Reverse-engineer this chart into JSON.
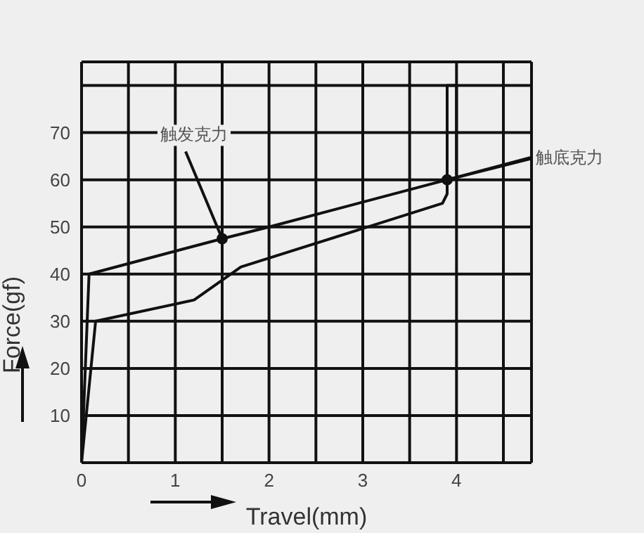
{
  "chart_data": {
    "type": "line",
    "xlabel": "Travel(mm)",
    "ylabel": "Force(gf)",
    "xlim": [
      0,
      4.8
    ],
    "ylim": [
      0,
      85
    ],
    "xticks": [
      0,
      {
        "value": 0.5,
        "label": null
      },
      1,
      {
        "value": 1.5,
        "label": null
      },
      2,
      {
        "value": 2.5,
        "label": null
      },
      3,
      {
        "value": 3.5,
        "label": null
      },
      4,
      {
        "value": 4.5,
        "label": null
      }
    ],
    "yticks": [
      {
        "value": 0,
        "label": null
      },
      10,
      20,
      30,
      40,
      50,
      60,
      70,
      {
        "value": 80,
        "label": null
      }
    ],
    "grid": true,
    "marker": "none",
    "line_style": "solid",
    "series": [
      {
        "color": "#111111",
        "x": [
          0,
          0.08,
          1.5,
          2,
          3.9,
          4.8
        ],
        "values": [
          0,
          40,
          47.5,
          50,
          60,
          64.5
        ]
      },
      {
        "color": "#111111",
        "x": [
          0,
          0.15,
          1.2,
          1.7,
          3.85,
          3.9,
          3.9,
          4,
          4
        ],
        "values": [
          0,
          30,
          34.5,
          41.5,
          55,
          57,
          80,
          80,
          61
        ]
      }
    ],
    "annotations": [
      {
        "text": "触发克力",
        "x": 1.5,
        "y": 47.5
      },
      {
        "text": "触底克力",
        "x": 3.9,
        "y": 60
      }
    ]
  }
}
